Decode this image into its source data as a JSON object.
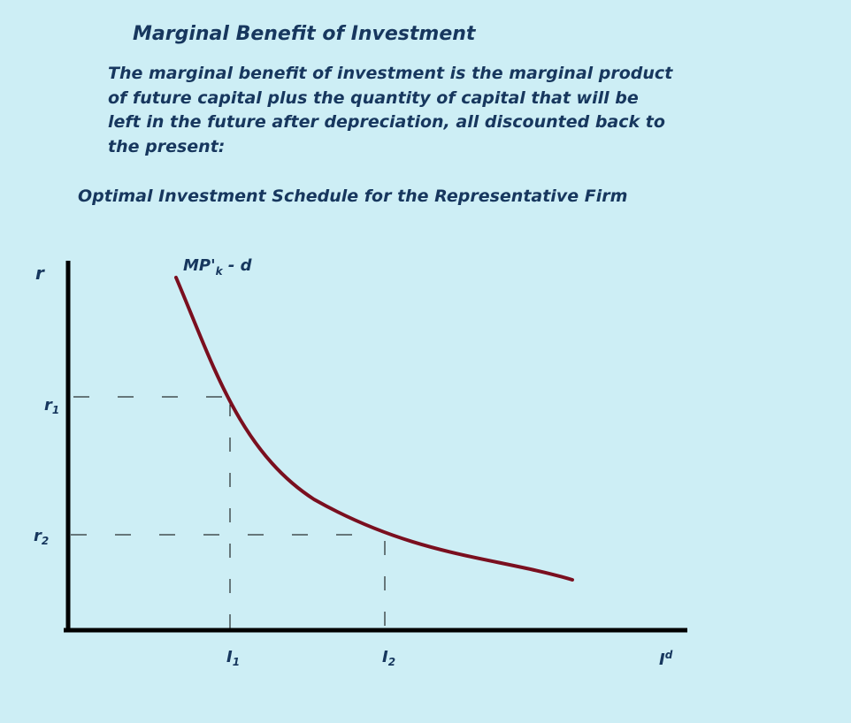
{
  "title": "Marginal Benefit of Investment",
  "description": "The marginal benefit of investment is the marginal product of future capital plus the quantity of capital that will be left in the future after depreciation, all discounted back to the present:",
  "diagram_title": "Optimal Investment Schedule for the Representative Firm",
  "axes": {
    "y_label": "r",
    "x_label_main": "I",
    "x_label_sup": "d"
  },
  "curve": {
    "label_main": "MP'",
    "label_sub": "k",
    "label_tail": " - d",
    "color": "#7a0f1f"
  },
  "levels": [
    {
      "r_main": "r",
      "r_sub": "1",
      "i_main": "I",
      "i_sub": "1"
    },
    {
      "r_main": "r",
      "r_sub": "2",
      "i_main": "I",
      "i_sub": "2"
    }
  ],
  "colors": {
    "background": "#cdeef5",
    "text": "#17375e",
    "axis": "#000000"
  }
}
